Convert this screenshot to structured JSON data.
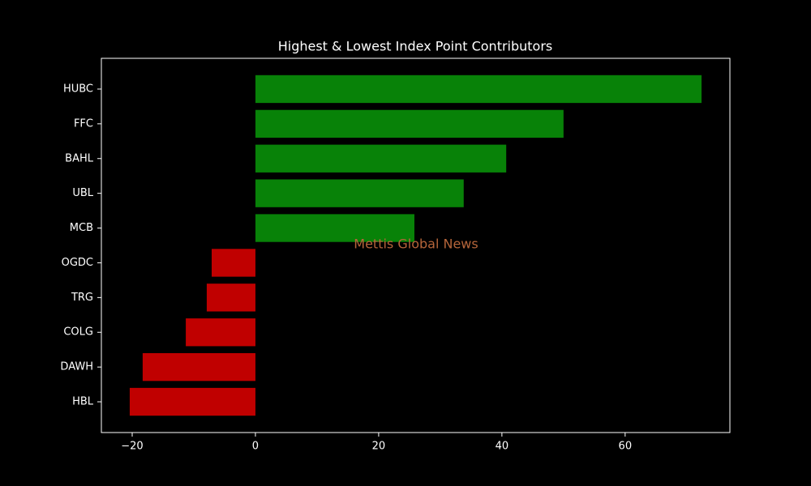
{
  "chart_data": {
    "type": "barh",
    "title": "Highest & Lowest Index Point Contributors",
    "categories": [
      "HUBC",
      "FFC",
      "BAHL",
      "UBL",
      "MCB",
      "OGDC",
      "TRG",
      "COLG",
      "DAWH",
      "HBL"
    ],
    "values": [
      72.4,
      50.0,
      40.7,
      33.8,
      25.8,
      -7.1,
      -7.9,
      -11.3,
      -18.3,
      -20.4
    ],
    "colors": [
      "#088208",
      "#088208",
      "#088208",
      "#088208",
      "#088208",
      "#c00000",
      "#c00000",
      "#c00000",
      "#c00000",
      "#c00000"
    ],
    "xlim": [
      -25,
      77
    ],
    "xticks": [
      {
        "value": -20,
        "label": "−20"
      },
      0,
      20,
      40,
      60
    ],
    "annotation": "Mettis Global News"
  }
}
